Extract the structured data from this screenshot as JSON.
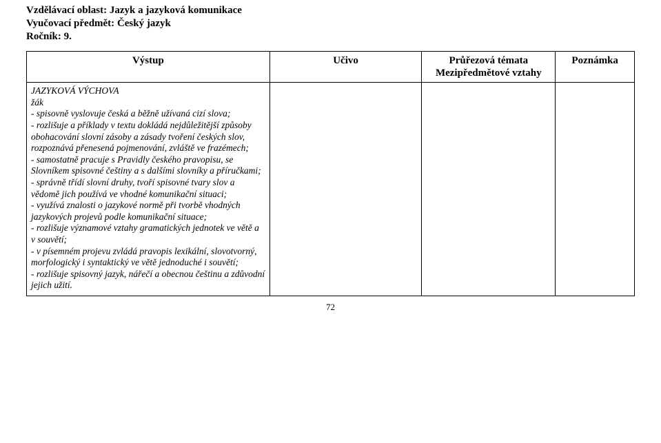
{
  "header": {
    "line1_label": "Vzdělávací oblast:",
    "line1_value": "Jazyk a jazyková komunikace",
    "line2_label": "Vyučovací předmět:",
    "line2_value": "Český jazyk",
    "line3_label": "Ročník:",
    "line3_value": "9."
  },
  "table": {
    "columns": {
      "c1": "Výstup",
      "c2": "Učivo",
      "c3_line1": "Průřezová témata",
      "c3_line2": "Mezipředmětové vztahy",
      "c4": "Poznámka"
    },
    "widths_pct": [
      40,
      25,
      22,
      13
    ],
    "border_color": "#000000",
    "header_font_size": 15,
    "body_font_size": 13.5
  },
  "content": {
    "title": "JAZYKOVÁ VÝCHOVA",
    "zak": "žák",
    "bullets": [
      "- spisovně vyslovuje česká a běžně užívaná cizí slova;",
      "- rozlišuje a příklady v textu dokládá nejdůležitější způsoby obohacování slovní zásoby a zásady tvoření českých slov, rozpoznává přenesená pojmenování, zvláště ve frazémech;",
      "- samostatně pracuje s Pravidly českého pravopisu, se Slovníkem spisovné češtiny a s dalšími slovníky a příručkami;",
      "- správně třídí slovní druhy, tvoří spisovné tvary slov a vědomě jich používá ve vhodné komunikační situaci;",
      "- využívá znalosti o jazykové normě při tvorbě vhodných jazykových projevů podle komunikační situace;",
      "- rozlišuje významové vztahy gramatických jednotek ve větě a v souvětí;",
      "- v písemném projevu zvládá pravopis lexikální, slovotvorný, morfologický i syntaktický ve větě jednoduché i souvětí;",
      "- rozlišuje spisovný jazyk, nářečí a obecnou češtinu a zdůvodní jejich užití."
    ]
  },
  "page_number": "72",
  "colors": {
    "background": "#ffffff",
    "text": "#000000",
    "border": "#000000"
  },
  "typography": {
    "font_family": "Times New Roman",
    "header_bold": true,
    "body_italic": true
  }
}
